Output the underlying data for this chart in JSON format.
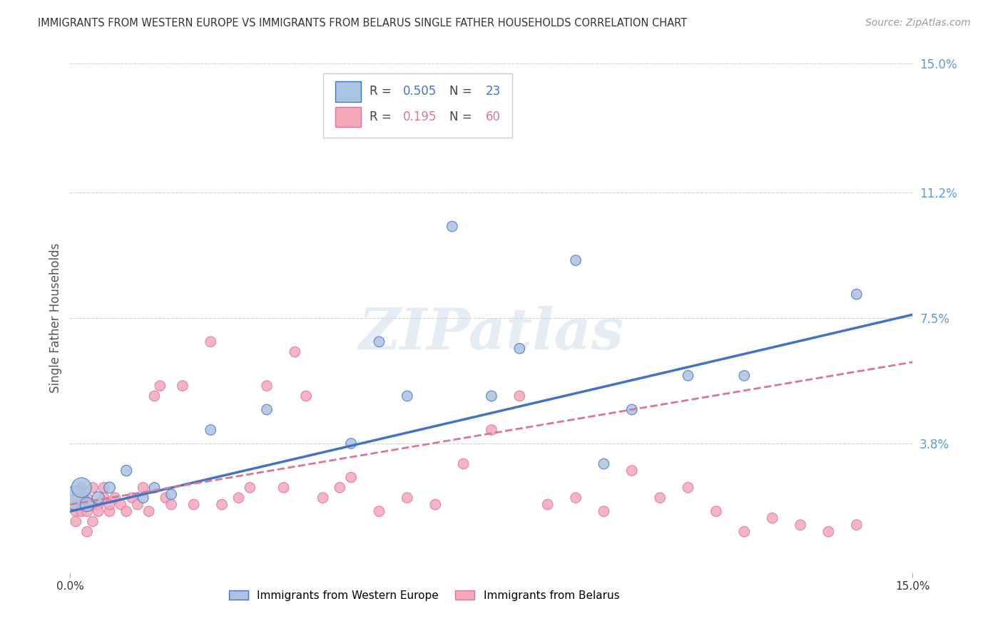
{
  "title": "IMMIGRANTS FROM WESTERN EUROPE VS IMMIGRANTS FROM BELARUS SINGLE FATHER HOUSEHOLDS CORRELATION CHART",
  "source": "Source: ZipAtlas.com",
  "ylabel": "Single Father Households",
  "xlim": [
    0.0,
    0.15
  ],
  "ylim": [
    0.0,
    0.15
  ],
  "x_tick_labels": [
    "0.0%",
    "15.0%"
  ],
  "y_tick_right": [
    0.15,
    0.112,
    0.075,
    0.038
  ],
  "y_tick_right_labels": [
    "15.0%",
    "11.2%",
    "7.5%",
    "3.8%"
  ],
  "legend_blue_R": "0.505",
  "legend_blue_N": "23",
  "legend_pink_R": "0.195",
  "legend_pink_N": "60",
  "legend_label_blue": "Immigrants from Western Europe",
  "legend_label_pink": "Immigrants from Belarus",
  "blue_color": "#a8c4e0",
  "blue_line_color": "#4472c4",
  "pink_color": "#f4a7b9",
  "pink_line_color": "#d4789a",
  "watermark": "ZIPatlas",
  "blue_line_start_y": 0.018,
  "blue_line_end_y": 0.076,
  "pink_line_start_y": 0.02,
  "pink_line_end_y": 0.062,
  "blue_scatter_x": [
    0.001,
    0.002,
    0.003,
    0.005,
    0.007,
    0.01,
    0.013,
    0.015,
    0.018,
    0.025,
    0.035,
    0.05,
    0.055,
    0.06,
    0.068,
    0.075,
    0.08,
    0.09,
    0.095,
    0.1,
    0.11,
    0.12,
    0.14
  ],
  "blue_scatter_y": [
    0.022,
    0.025,
    0.02,
    0.022,
    0.025,
    0.03,
    0.022,
    0.025,
    0.023,
    0.042,
    0.048,
    0.038,
    0.068,
    0.052,
    0.102,
    0.052,
    0.066,
    0.092,
    0.032,
    0.048,
    0.058,
    0.058,
    0.082
  ],
  "blue_scatter_sizes": [
    600,
    400,
    200,
    150,
    130,
    120,
    110,
    110,
    110,
    110,
    110,
    110,
    110,
    110,
    110,
    110,
    110,
    110,
    110,
    110,
    110,
    110,
    110
  ],
  "pink_scatter_x": [
    0.001,
    0.001,
    0.001,
    0.002,
    0.002,
    0.002,
    0.003,
    0.003,
    0.003,
    0.004,
    0.004,
    0.004,
    0.005,
    0.005,
    0.006,
    0.006,
    0.007,
    0.007,
    0.008,
    0.009,
    0.01,
    0.011,
    0.012,
    0.013,
    0.014,
    0.015,
    0.016,
    0.017,
    0.018,
    0.02,
    0.022,
    0.025,
    0.027,
    0.03,
    0.032,
    0.035,
    0.038,
    0.04,
    0.042,
    0.045,
    0.048,
    0.05,
    0.055,
    0.06,
    0.065,
    0.07,
    0.075,
    0.08,
    0.085,
    0.09,
    0.095,
    0.1,
    0.105,
    0.11,
    0.115,
    0.12,
    0.125,
    0.13,
    0.135,
    0.14
  ],
  "pink_scatter_y": [
    0.022,
    0.018,
    0.015,
    0.02,
    0.025,
    0.018,
    0.022,
    0.018,
    0.012,
    0.02,
    0.025,
    0.015,
    0.02,
    0.018,
    0.022,
    0.025,
    0.018,
    0.02,
    0.022,
    0.02,
    0.018,
    0.022,
    0.02,
    0.025,
    0.018,
    0.052,
    0.055,
    0.022,
    0.02,
    0.055,
    0.02,
    0.068,
    0.02,
    0.022,
    0.025,
    0.055,
    0.025,
    0.065,
    0.052,
    0.022,
    0.025,
    0.028,
    0.018,
    0.022,
    0.02,
    0.032,
    0.042,
    0.052,
    0.02,
    0.022,
    0.018,
    0.03,
    0.022,
    0.025,
    0.018,
    0.012,
    0.016,
    0.014,
    0.012,
    0.014
  ],
  "pink_scatter_sizes": [
    110,
    110,
    110,
    110,
    110,
    110,
    110,
    110,
    110,
    110,
    110,
    110,
    110,
    110,
    110,
    110,
    110,
    110,
    110,
    110,
    110,
    110,
    110,
    110,
    110,
    110,
    110,
    110,
    110,
    110,
    110,
    110,
    110,
    110,
    110,
    110,
    110,
    110,
    110,
    110,
    110,
    110,
    110,
    110,
    110,
    110,
    110,
    110,
    110,
    110,
    110,
    110,
    110,
    110,
    110,
    110,
    110,
    110,
    110,
    110
  ],
  "grid_color": "#d0d0d0",
  "bg_color": "#ffffff",
  "title_color": "#333333",
  "right_axis_color": "#5b9bd5"
}
